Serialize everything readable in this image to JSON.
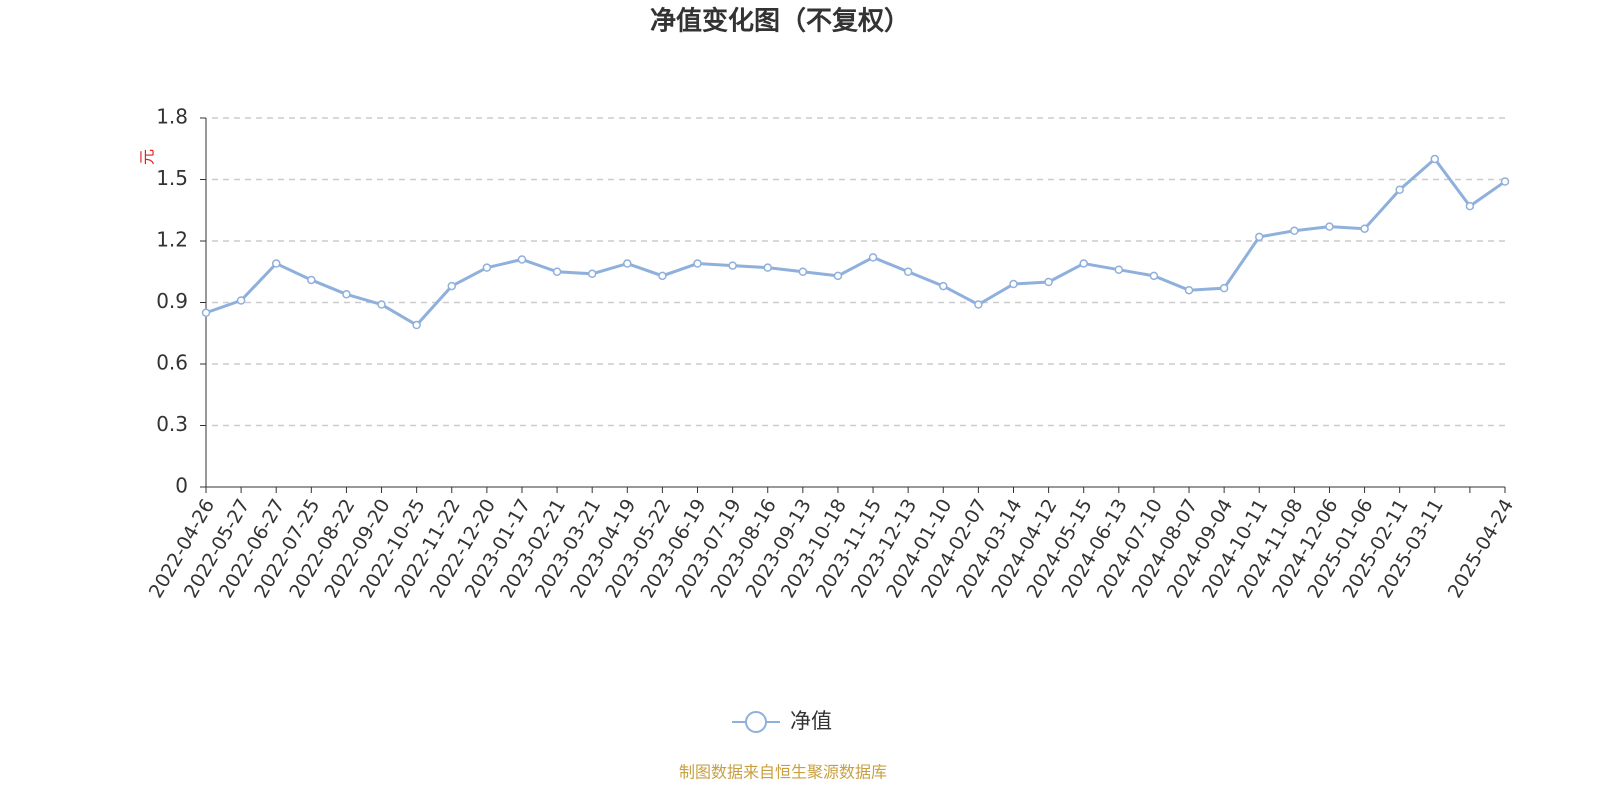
{
  "chart_data": {
    "type": "line",
    "title": "净值变化图（不复权）",
    "y_label": "元",
    "source": "制图数据来自恒生聚源数据库",
    "categories": [
      "2022-04-26",
      "2022-05-27",
      "2022-06-27",
      "2022-07-25",
      "2022-08-22",
      "2022-09-20",
      "2022-10-25",
      "2022-11-22",
      "2022-12-20",
      "2023-01-17",
      "2023-02-21",
      "2023-03-21",
      "2023-04-19",
      "2023-05-22",
      "2023-06-19",
      "2023-07-19",
      "2023-08-16",
      "2023-09-13",
      "2023-10-18",
      "2023-11-15",
      "2023-12-13",
      "2024-01-10",
      "2024-02-07",
      "2024-03-14",
      "2024-04-12",
      "2024-05-15",
      "2024-06-13",
      "2024-07-10",
      "2024-08-07",
      "2024-09-04",
      "2024-10-11",
      "2024-11-08",
      "2024-12-06",
      "2025-01-06",
      "2025-02-11",
      "2025-03-11",
      null,
      "2025-04-24"
    ],
    "series": [
      {
        "name": "净值",
        "color": "#8fb0dc",
        "values": [
          0.85,
          0.91,
          1.09,
          1.01,
          0.94,
          0.89,
          0.79,
          0.98,
          1.07,
          1.11,
          1.05,
          1.04,
          1.09,
          1.03,
          1.09,
          1.08,
          1.07,
          1.05,
          1.03,
          1.12,
          1.05,
          0.98,
          0.89,
          0.99,
          1.0,
          1.09,
          1.06,
          1.03,
          0.96,
          0.97,
          1.22,
          1.25,
          1.27,
          1.26,
          1.45,
          1.6,
          1.37,
          1.49
        ]
      }
    ],
    "ylim": [
      0,
      1.8
    ],
    "yticks": [
      0,
      0.3,
      0.6,
      0.9,
      1.2,
      1.5,
      1.8
    ],
    "grid": true,
    "legend": "bottom"
  }
}
